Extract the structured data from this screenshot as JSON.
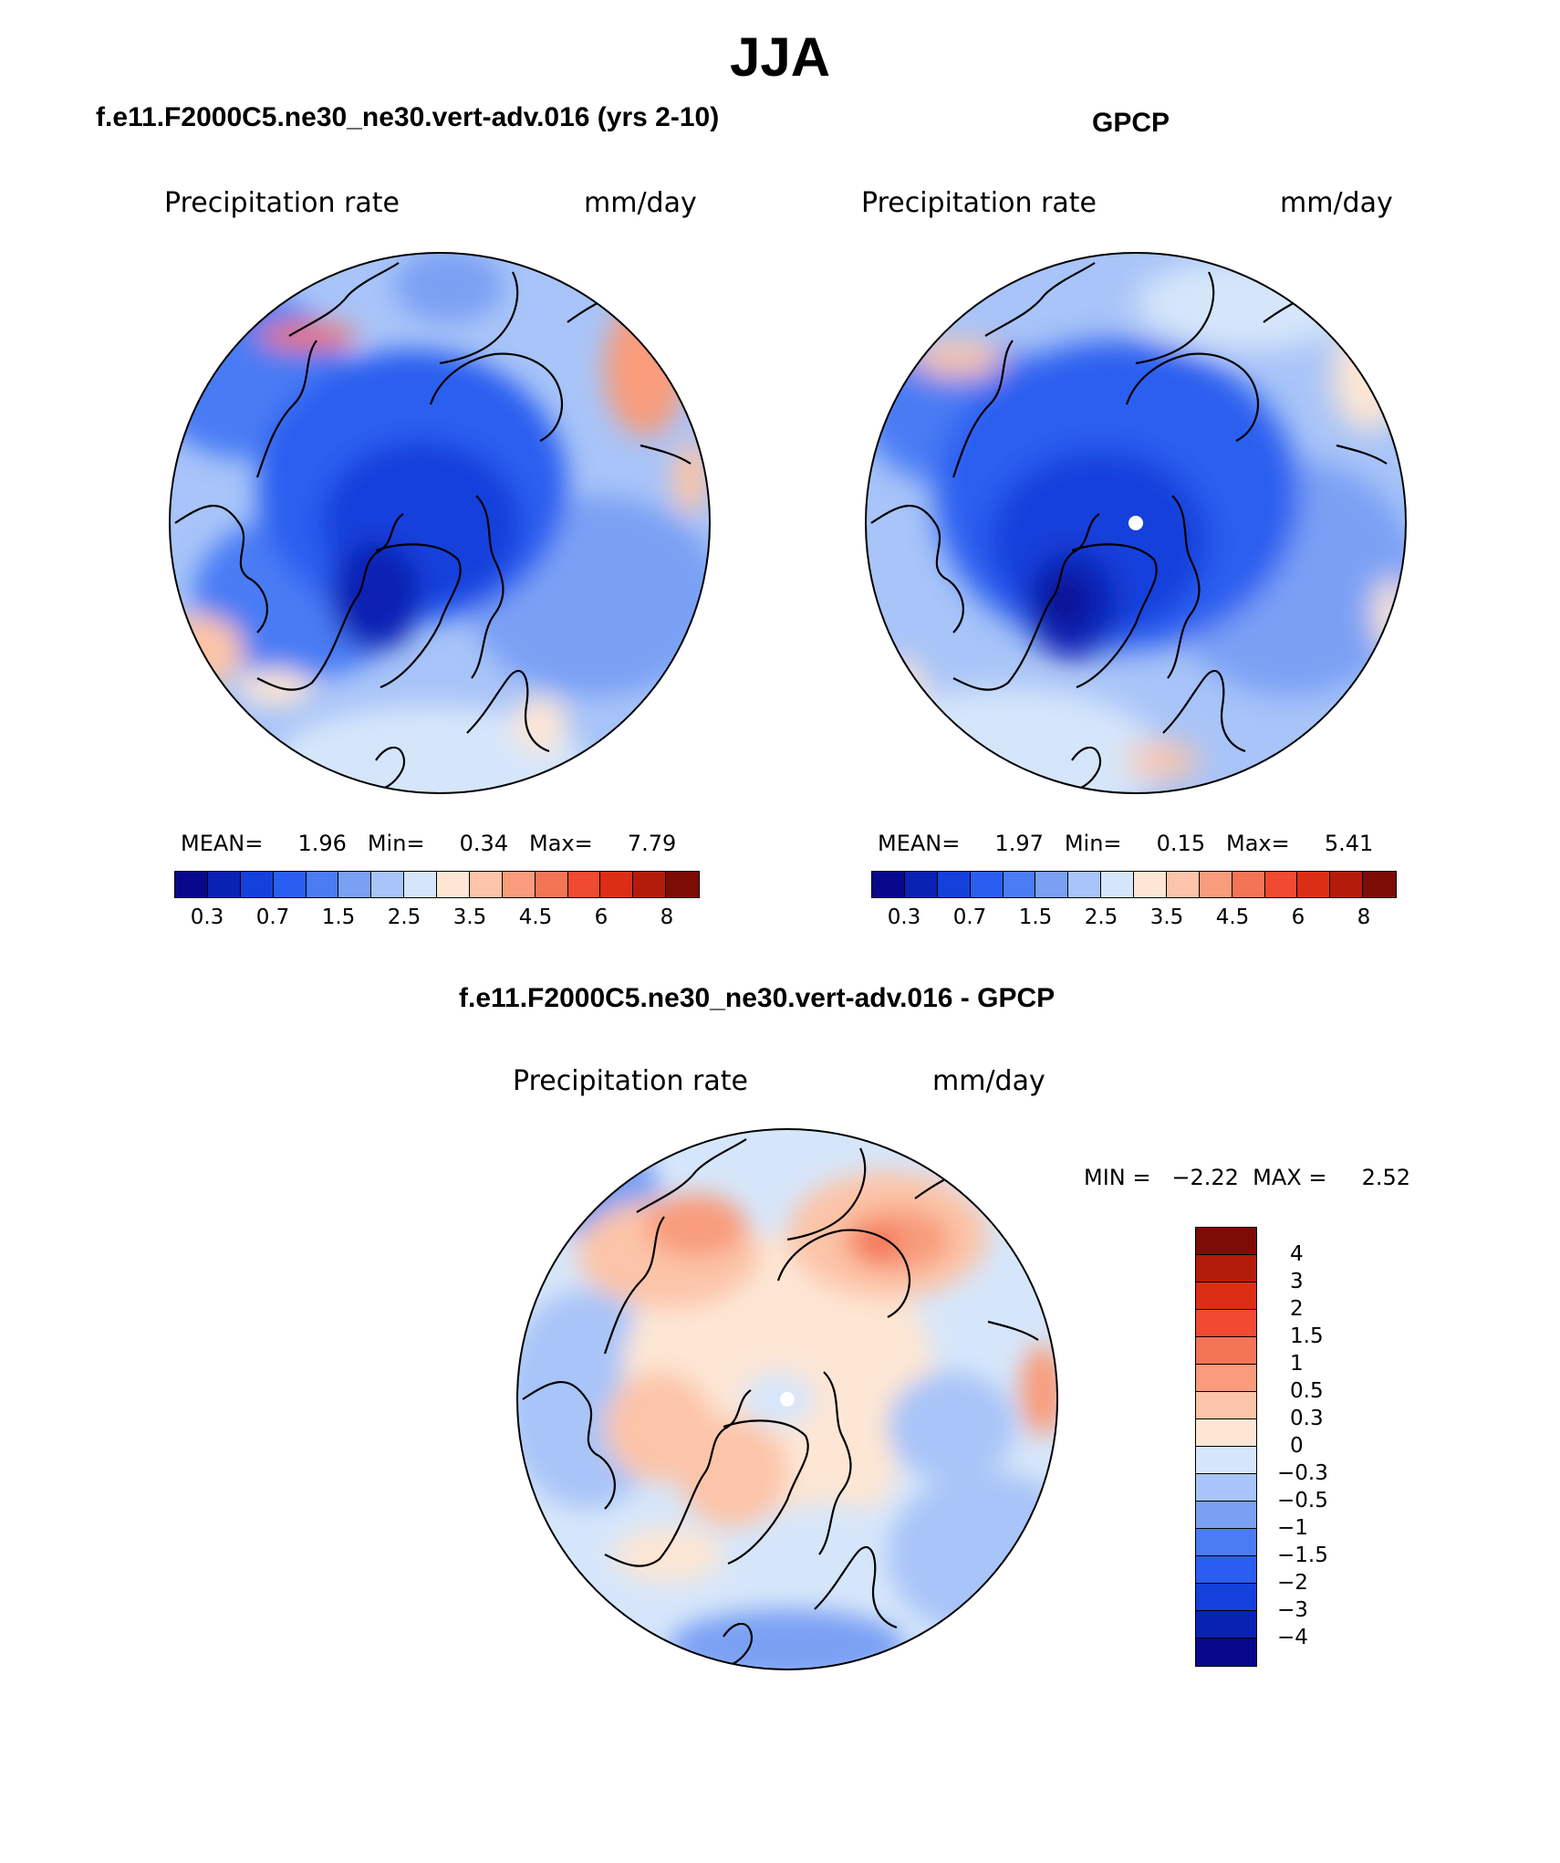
{
  "title": "JJA",
  "panels": {
    "model": {
      "title": "f.e11.F2000C5.ne30_ne30.vert-adv.016 (yrs 2-10)",
      "variable": "Precipitation rate",
      "units": "mm/day",
      "stats": "MEAN=     1.96   Min=     0.34   Max=     7.79"
    },
    "obs": {
      "title": "GPCP",
      "variable": "Precipitation rate",
      "units": "mm/day",
      "stats": "MEAN=     1.97   Min=     0.15   Max=     5.41"
    },
    "diff": {
      "title": "f.e11.F2000C5.ne30_ne30.vert-adv.016 - GPCP",
      "variable": "Precipitation rate",
      "units": "mm/day",
      "stats": "MIN =   −2.22  MAX =     2.52"
    }
  },
  "colorbar_main": {
    "colors": [
      "#08088c",
      "#0a22b4",
      "#1440dc",
      "#2a5ef0",
      "#4a7cf4",
      "#7aa0f4",
      "#a8c4f8",
      "#d6e6fa",
      "#fde6d4",
      "#fcc4a8",
      "#f89c7c",
      "#f47456",
      "#f04a30",
      "#dc2e14",
      "#b41c0a",
      "#7c0c04"
    ],
    "ticks": [
      "0.3",
      "0.7",
      "1.5",
      "2.5",
      "3.5",
      "4.5",
      "6",
      "8"
    ]
  },
  "colorbar_diff": {
    "colors": [
      "#7c0c04",
      "#b41c0a",
      "#dc2e14",
      "#f04a30",
      "#f47456",
      "#f89c7c",
      "#fcc4a8",
      "#fde6d4",
      "#d6e6fa",
      "#a8c4f8",
      "#7aa0f4",
      "#4a7cf4",
      "#2a5ef0",
      "#1440dc",
      "#0a22b4",
      "#08088c"
    ],
    "ticks": [
      "4",
      "3",
      "2",
      "1.5",
      "1",
      "0.5",
      "0.3",
      "0",
      "−0.3",
      "−0.5",
      "−1",
      "−1.5",
      "−2",
      "−3",
      "−4"
    ]
  }
}
